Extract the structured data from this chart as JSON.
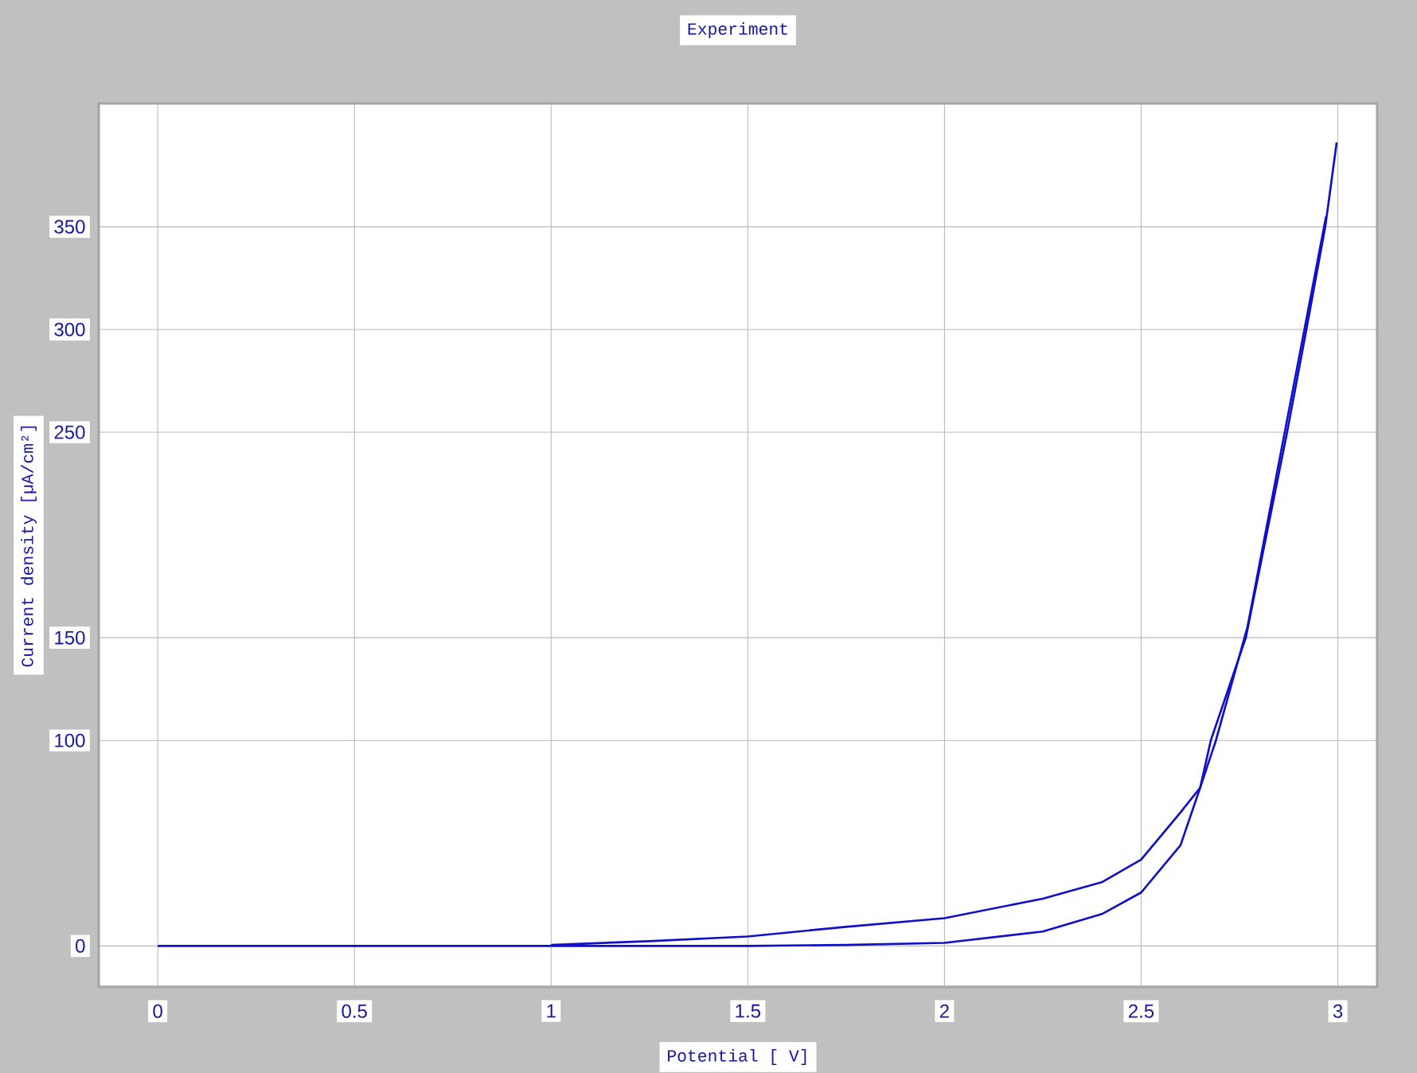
{
  "chart_data": {
    "type": "line",
    "title": "Experiment",
    "xlabel": "Potential [ V]",
    "ylabel": "Current density [µA/cm²]",
    "series": [
      {
        "color": "#1010c8",
        "x": [
          0,
          0.5,
          1,
          1.5,
          1.75,
          2,
          2.25,
          2.4,
          2.5,
          2.6,
          2.65,
          2.677,
          2.766,
          2.871,
          2.92,
          2.968,
          2.997
        ],
        "values": [
          0,
          0,
          0,
          0,
          0.5,
          1.5,
          7,
          15.5,
          26,
          49,
          77,
          100,
          150,
          250,
          300,
          350,
          391
        ]
      },
      {
        "color": "#1010c8",
        "x": [
          2.97,
          2.92,
          2.87,
          2.77,
          2.69,
          2.65,
          2.6,
          2.5,
          2.4,
          2.25,
          2,
          1.75,
          1.5,
          1.25,
          1
        ],
        "values": [
          355,
          305,
          255,
          155,
          100,
          77,
          65,
          42,
          31,
          23,
          13.5,
          9.3,
          4.6,
          2.3,
          0.5
        ]
      }
    ],
    "xlim": [
      -0.15,
      3.1
    ],
    "ylim": [
      -20,
      410
    ],
    "xticks": [
      0,
      0.5,
      1,
      1.5,
      2,
      2.5,
      3
    ],
    "yticks": [
      0,
      100,
      150,
      250,
      300,
      350
    ],
    "grid": true,
    "marker": "none",
    "line_style": "solid"
  }
}
